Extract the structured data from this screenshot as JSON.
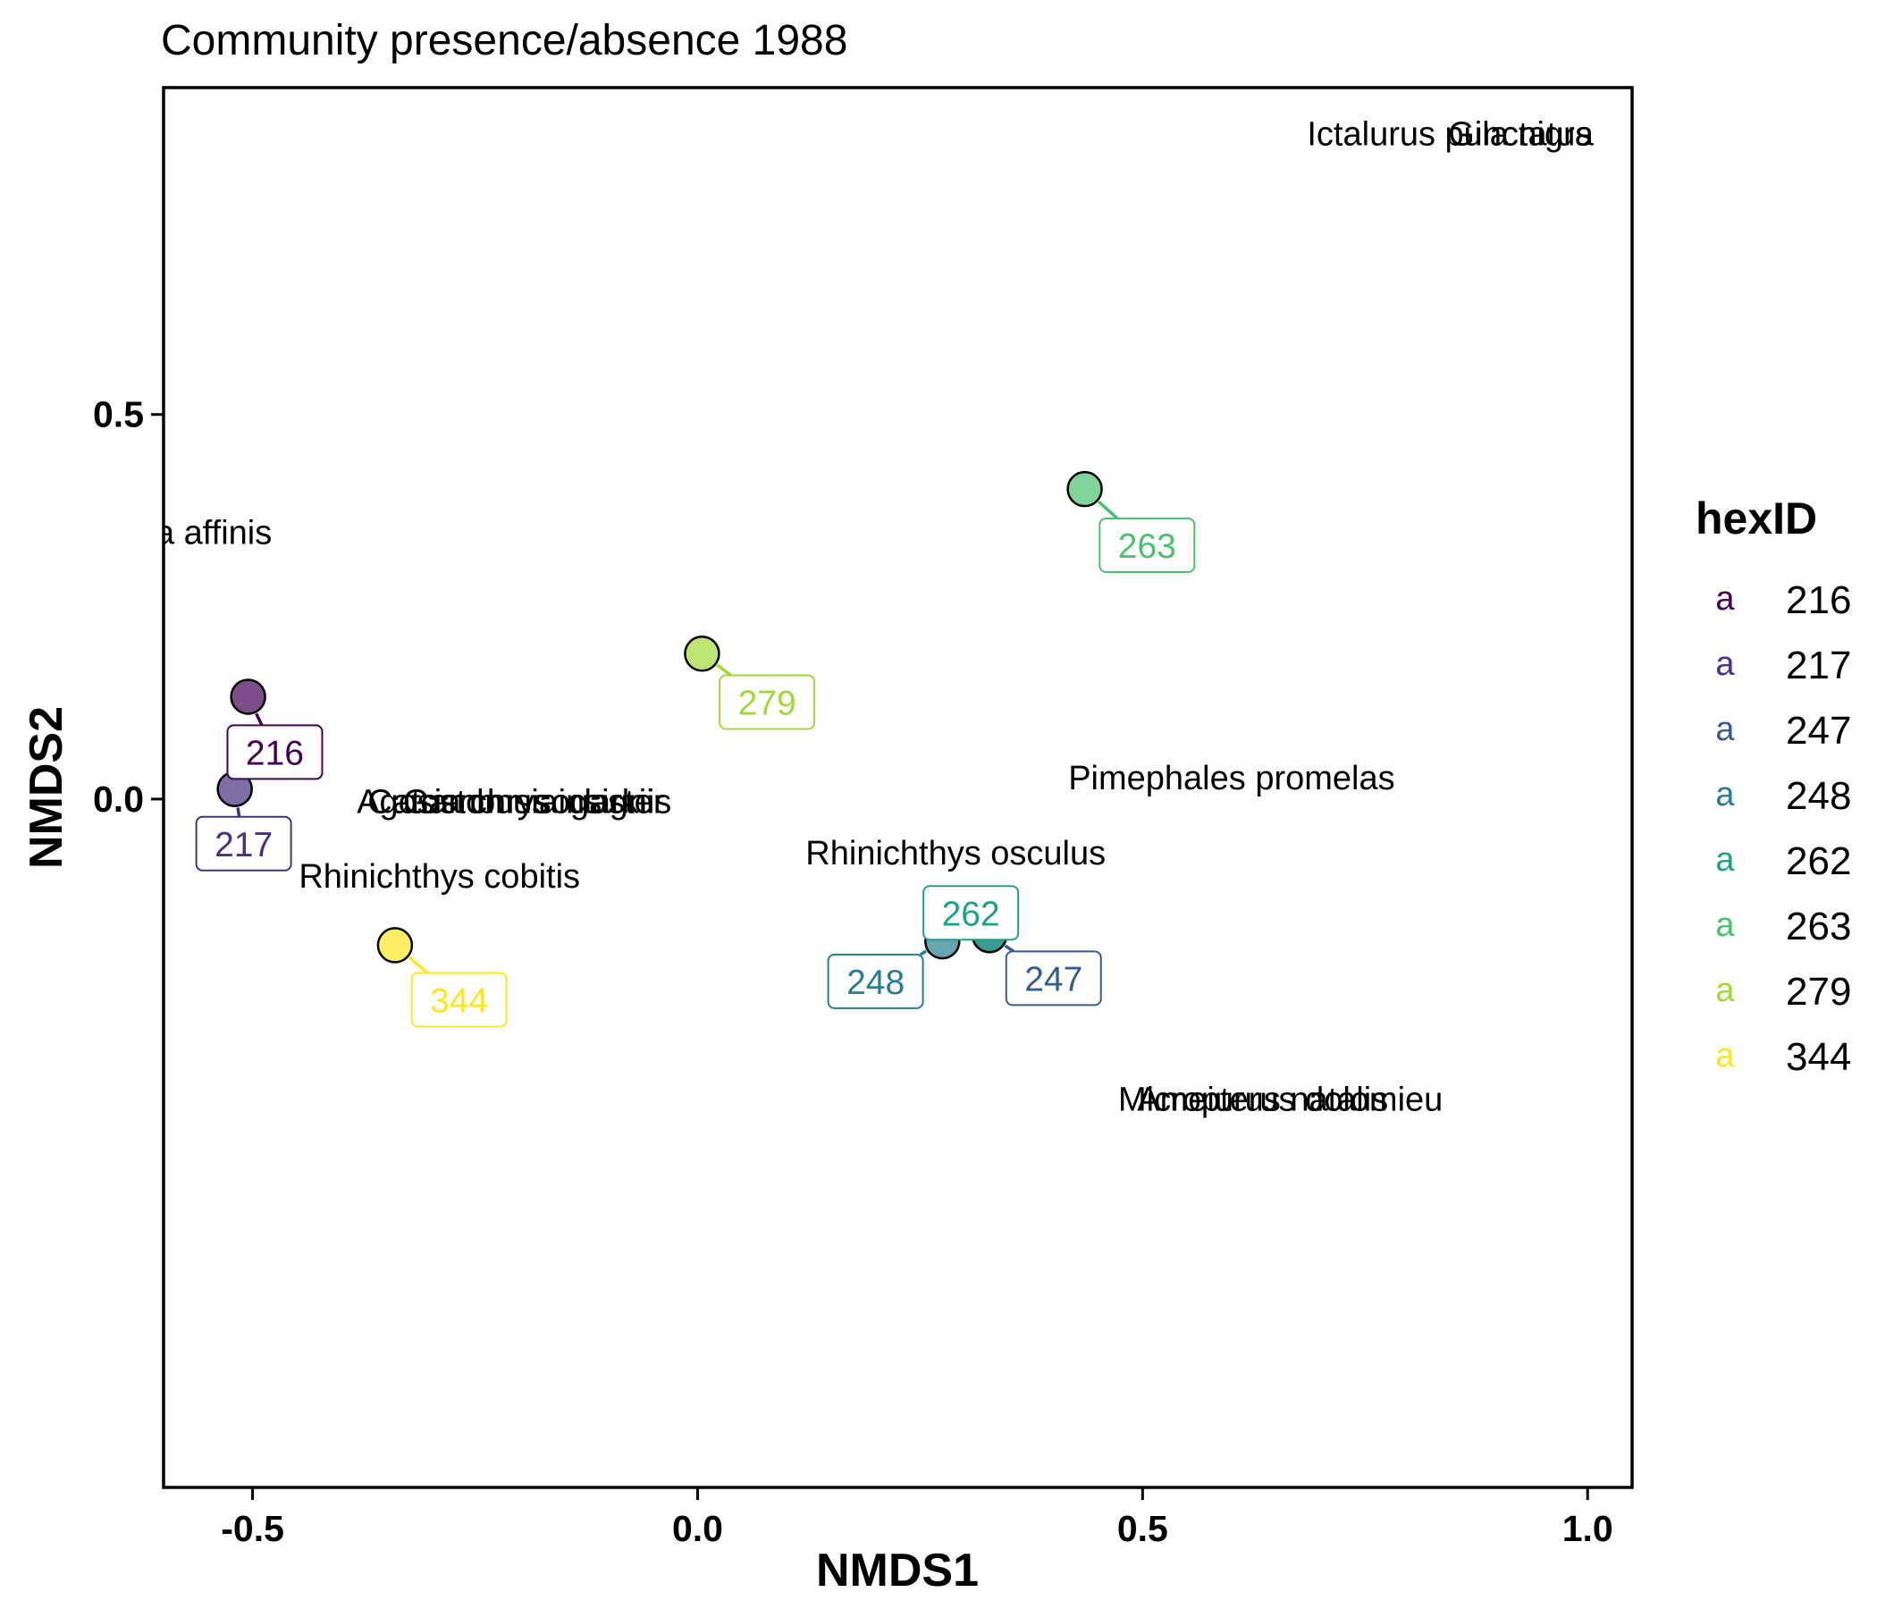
{
  "chart_data": {
    "type": "scatter",
    "title": "Community presence/absence 1988",
    "xlabel": "NMDS1",
    "ylabel": "NMDS2",
    "xlim": [
      -0.6,
      1.05
    ],
    "ylim": [
      -0.895,
      0.925
    ],
    "xticks": [
      -0.5,
      0.0,
      0.5,
      1.0
    ],
    "xtick_labels": [
      "-0.5",
      "0.0",
      "0.5",
      "1.0"
    ],
    "yticks": [
      0.0,
      0.5
    ],
    "ytick_labels": [
      "0.0",
      "0.5"
    ],
    "grid": false,
    "legend": {
      "title": "hexID",
      "position": "right",
      "key_glyph": "a"
    },
    "sites": [
      {
        "id": "216",
        "x": -0.505,
        "y": 0.133,
        "color": "#440154",
        "label_x": -0.475,
        "label_y": 0.061
      },
      {
        "id": "217",
        "x": -0.52,
        "y": 0.013,
        "color": "#46327e",
        "label_x": -0.51,
        "label_y": -0.058
      },
      {
        "id": "247",
        "x": 0.328,
        "y": -0.177,
        "color": "#365c8d",
        "label_x": 0.4,
        "label_y": -0.233
      },
      {
        "id": "248",
        "x": 0.275,
        "y": -0.185,
        "color": "#277f8e",
        "label_x": 0.2,
        "label_y": -0.237
      },
      {
        "id": "262",
        "x": 0.328,
        "y": -0.177,
        "color": "#1fa187",
        "label_x": 0.307,
        "label_y": -0.148
      },
      {
        "id": "263",
        "x": 0.435,
        "y": 0.403,
        "color": "#4ac16d",
        "label_x": 0.505,
        "label_y": 0.33
      },
      {
        "id": "279",
        "x": 0.005,
        "y": 0.189,
        "color": "#a0da39",
        "label_x": 0.078,
        "label_y": 0.126
      },
      {
        "id": "344",
        "x": -0.34,
        "y": -0.19,
        "color": "#fde725",
        "label_x": -0.268,
        "label_y": -0.261
      }
    ],
    "species": [
      {
        "name": "Ictalurus punctatus",
        "x": 0.845,
        "y": 0.865
      },
      {
        "name": "Gila nigra",
        "x": 0.925,
        "y": 0.865
      },
      {
        "name": "Gambusia affinis",
        "x": -0.62,
        "y": 0.347
      },
      {
        "name": "Pimephales promelas",
        "x": 0.6,
        "y": 0.028
      },
      {
        "name": "Catostomus insignis",
        "x": -0.2,
        "y": -0.003
      },
      {
        "name": "Agosia chrysogaster",
        "x": -0.21,
        "y": -0.003
      },
      {
        "name": "Gambusia clarkii",
        "x": -0.19,
        "y": -0.003
      },
      {
        "name": "Rhinichthys osculus",
        "x": 0.29,
        "y": -0.07
      },
      {
        "name": "Rhinichthys cobitis",
        "x": -0.29,
        "y": -0.1
      },
      {
        "name": "Micropterus dolomieu",
        "x": 0.655,
        "y": -0.39
      },
      {
        "name": "Ameiurus natalis",
        "x": 0.635,
        "y": -0.39
      }
    ]
  }
}
